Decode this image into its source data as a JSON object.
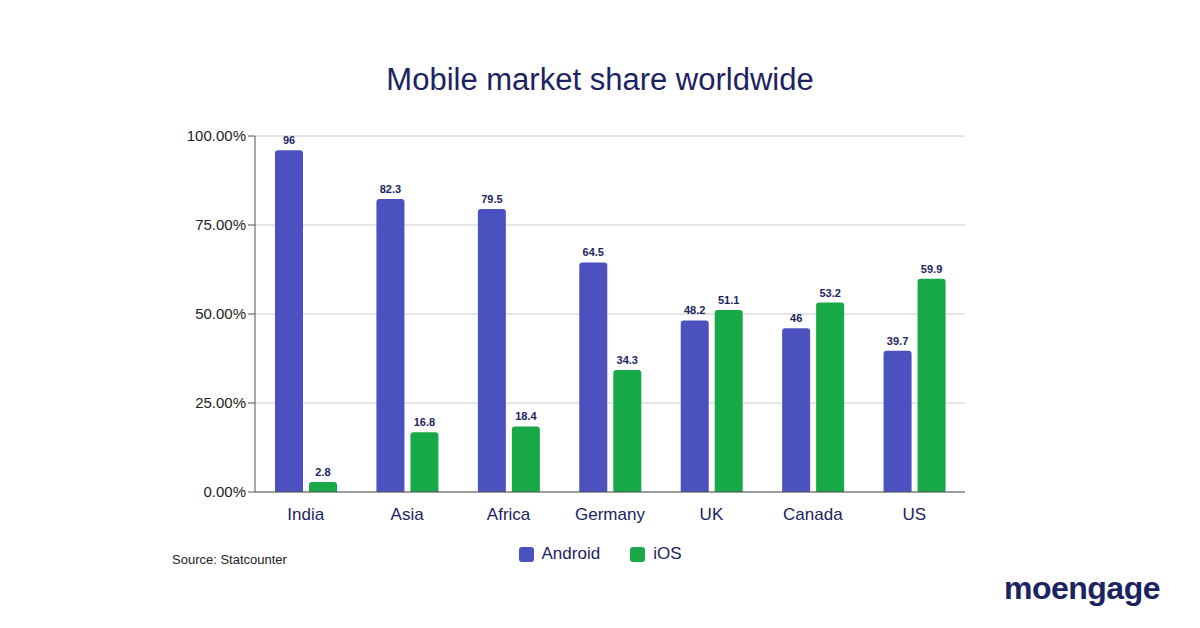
{
  "chart_data": {
    "type": "bar",
    "title": "Mobile market share worldwide",
    "categories": [
      "India",
      "Asia",
      "Africa",
      "Germany",
      "UK",
      "Canada",
      "US"
    ],
    "series": [
      {
        "name": "Android",
        "color": "#4b52bf",
        "values": [
          96,
          82.3,
          79.5,
          64.5,
          48.2,
          46,
          39.7
        ]
      },
      {
        "name": "iOS",
        "color": "#17a848",
        "values": [
          2.8,
          16.8,
          18.4,
          34.3,
          51.1,
          53.2,
          59.9
        ]
      }
    ],
    "ylim": [
      0,
      100
    ],
    "yticks": [
      {
        "value": 0,
        "label": "0.00%"
      },
      {
        "value": 25,
        "label": "25.00%"
      },
      {
        "value": 50,
        "label": "50.00%"
      },
      {
        "value": 75,
        "label": "75.00%"
      },
      {
        "value": 100,
        "label": "100.00%"
      }
    ],
    "grid": true,
    "legend": "bottom",
    "data_labels": true,
    "source": "Source: Statcounter",
    "logo": "moengage"
  }
}
